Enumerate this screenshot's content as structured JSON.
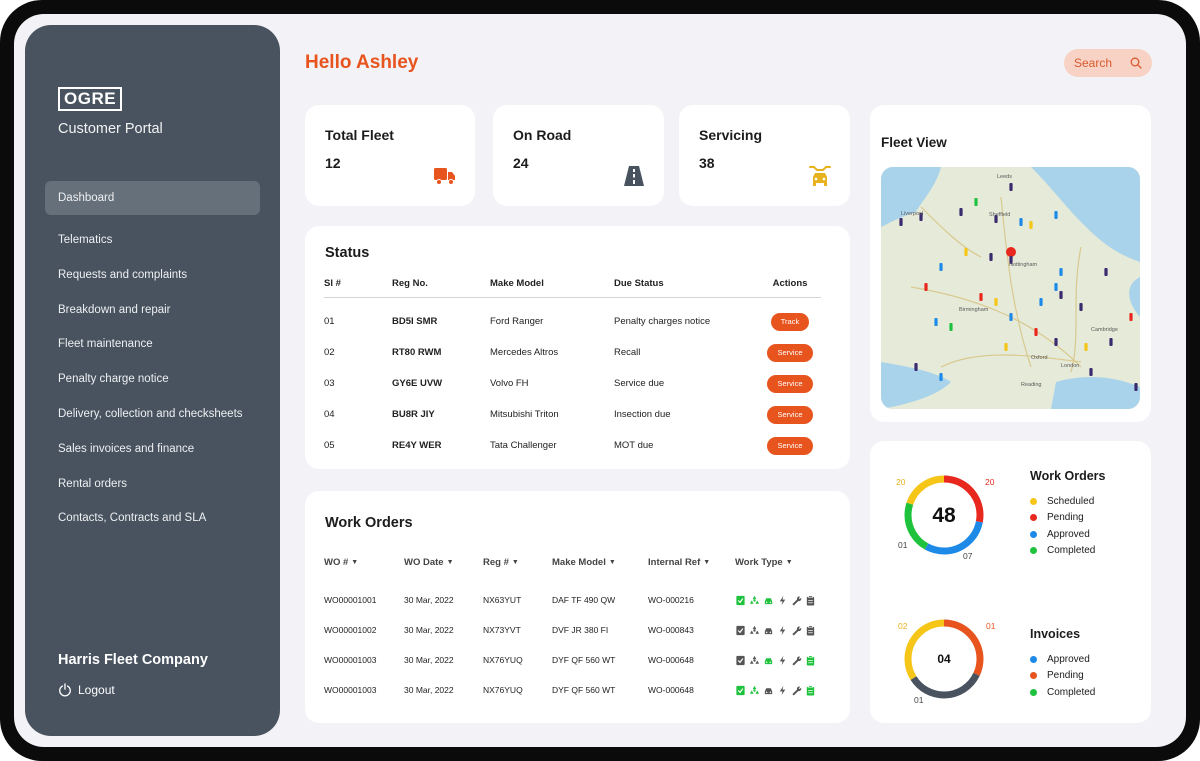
{
  "sidebar": {
    "logo": "OGRE",
    "portal_title": "Customer Portal",
    "items": [
      {
        "label": "Dashboard",
        "active": true
      },
      {
        "label": "Telematics"
      },
      {
        "label": "Requests and complaints"
      },
      {
        "label": "Breakdown and repair"
      },
      {
        "label": "Fleet maintenance"
      },
      {
        "label": "Penalty charge notice"
      },
      {
        "label": "Delivery, collection and checksheets"
      },
      {
        "label": "Sales invoices and finance"
      },
      {
        "label": "Rental orders"
      },
      {
        "label": "Contacts, Contracts and SLA"
      }
    ],
    "company": "Harris Fleet Company",
    "logout": "Logout"
  },
  "header": {
    "greeting": "Hello Ashley",
    "search_label": "Search"
  },
  "stats": [
    {
      "title": "Total Fleet",
      "value": "12",
      "icon": "truck-icon",
      "color": "#e8541e"
    },
    {
      "title": "On Road",
      "value": "24",
      "icon": "road-icon",
      "color": "#48535f"
    },
    {
      "title": "Servicing",
      "value": "38",
      "icon": "car-service-icon",
      "color": "#e8b21e"
    }
  ],
  "status": {
    "title": "Status",
    "columns": [
      "Sl #",
      "Reg No.",
      "Make Model",
      "Due Status",
      "Actions"
    ],
    "rows": [
      {
        "sl": "01",
        "reg": "BD5I SMR",
        "model": "Ford Ranger",
        "due": "Penalty charges notice",
        "action": "Track"
      },
      {
        "sl": "02",
        "reg": "RT80 RWM",
        "model": "Mercedes Altros",
        "due": "Recall",
        "action": "Service"
      },
      {
        "sl": "03",
        "reg": "GY6E UVW",
        "model": "Volvo FH",
        "due": "Service due",
        "action": "Service"
      },
      {
        "sl": "04",
        "reg": "BU8R JIY",
        "model": "Mitsubishi Triton",
        "due": "Insection due",
        "action": "Service"
      },
      {
        "sl": "05",
        "reg": "RE4Y WER",
        "model": "Tata Challenger",
        "due": "MOT due",
        "action": "Service"
      }
    ]
  },
  "work_orders": {
    "title": "Work Orders",
    "columns": [
      "WO #",
      "WO Date",
      "Reg #",
      "Make Model",
      "Internal Ref",
      "Work Type"
    ],
    "rows": [
      {
        "wo": "WO00001001",
        "date": "30 Mar, 2022",
        "reg": "NX63YUT",
        "model": "DAF TF 490 QW",
        "ref": "WO-000216",
        "types": [
          1,
          1,
          1,
          0,
          0,
          0
        ]
      },
      {
        "wo": "WO00001002",
        "date": "30 Mar, 2022",
        "reg": "NX73YVT",
        "model": "DVF JR 380 FI",
        "ref": "WO-000843",
        "types": [
          0,
          0,
          0,
          0,
          0,
          0
        ]
      },
      {
        "wo": "WO00001003",
        "date": "30 Mar, 2022",
        "reg": "NX76YUQ",
        "model": "DYF QF 560 WT",
        "ref": "WO-000648",
        "types": [
          0,
          0,
          1,
          0,
          0,
          1
        ]
      },
      {
        "wo": "WO00001003",
        "date": "30 Mar, 2022",
        "reg": "NX76YUQ",
        "model": "DYF QF 560 WT",
        "ref": "WO-000648",
        "types": [
          1,
          1,
          0,
          0,
          0,
          1
        ]
      }
    ]
  },
  "fleet_view": {
    "title": "Fleet View",
    "map_labels": [
      "Leeds",
      "Sheffield",
      "Liverpool",
      "Nottingham",
      "Birmingham",
      "Cambridge",
      "Oxford",
      "London",
      "Reading"
    ]
  },
  "wo_chart": {
    "center": "48",
    "title": "Work Orders",
    "labels": {
      "top_left": "20",
      "top_right": "20",
      "bottom_left": "01",
      "bottom_right": "07"
    },
    "legend": [
      {
        "label": "Scheduled",
        "color": "#f5c518"
      },
      {
        "label": "Pending",
        "color": "#e8281e"
      },
      {
        "label": "Approved",
        "color": "#1e8ae8"
      },
      {
        "label": "Completed",
        "color": "#1ec23c"
      }
    ]
  },
  "invoice_chart": {
    "center": "04",
    "title": "Invoices",
    "labels": {
      "top_left": "02",
      "top_right": "01",
      "bottom_left": "01"
    },
    "legend": [
      {
        "label": "Approved",
        "color": "#1e8ae8"
      },
      {
        "label": "Pending",
        "color": "#e8541e"
      },
      {
        "label": "Completed",
        "color": "#1ec23c"
      }
    ]
  }
}
